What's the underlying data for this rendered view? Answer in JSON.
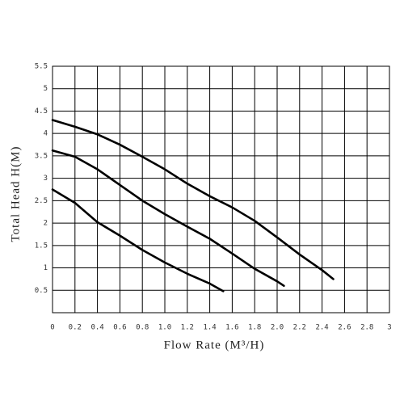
{
  "chart_data": {
    "type": "line",
    "xlabel": "Flow Rate (M³/H)",
    "ylabel": "Total Head H(M)",
    "xlim": [
      0,
      3
    ],
    "xticks": [
      0,
      0.2,
      0.4,
      0.6,
      0.8,
      {
        "value": 1,
        "label": "1.0"
      },
      1.2,
      1.4,
      1.6,
      1.8,
      {
        "value": 2,
        "label": "2.0"
      },
      2.2,
      2.4,
      2.6,
      2.8,
      3
    ],
    "ylim": [
      0,
      5.5
    ],
    "yticks": [
      0.5,
      1,
      1.5,
      2,
      2.5,
      3,
      3.5,
      4,
      4.5,
      5,
      5.5
    ],
    "grid": true,
    "series": [
      {
        "color": "#000000",
        "x": [
          0,
          0.2,
          0.4,
          0.6,
          0.8,
          1.0,
          1.2,
          1.4,
          1.6,
          1.8,
          2.0,
          2.2,
          2.4,
          2.5
        ],
        "values": [
          4.3,
          4.15,
          3.98,
          3.75,
          3.48,
          3.2,
          2.88,
          2.6,
          2.35,
          2.05,
          1.68,
          1.3,
          0.95,
          0.75
        ]
      },
      {
        "color": "#000000",
        "x": [
          0,
          0.2,
          0.4,
          0.6,
          0.8,
          1.0,
          1.2,
          1.4,
          1.6,
          1.8,
          2.0,
          2.06
        ],
        "values": [
          3.62,
          3.48,
          3.2,
          2.85,
          2.5,
          2.2,
          1.92,
          1.65,
          1.32,
          0.98,
          0.7,
          0.6
        ]
      },
      {
        "color": "#000000",
        "x": [
          0,
          0.2,
          0.4,
          0.6,
          0.8,
          1.0,
          1.2,
          1.4,
          1.52
        ],
        "values": [
          2.75,
          2.45,
          2.02,
          1.72,
          1.4,
          1.12,
          0.87,
          0.65,
          0.48
        ]
      }
    ]
  }
}
